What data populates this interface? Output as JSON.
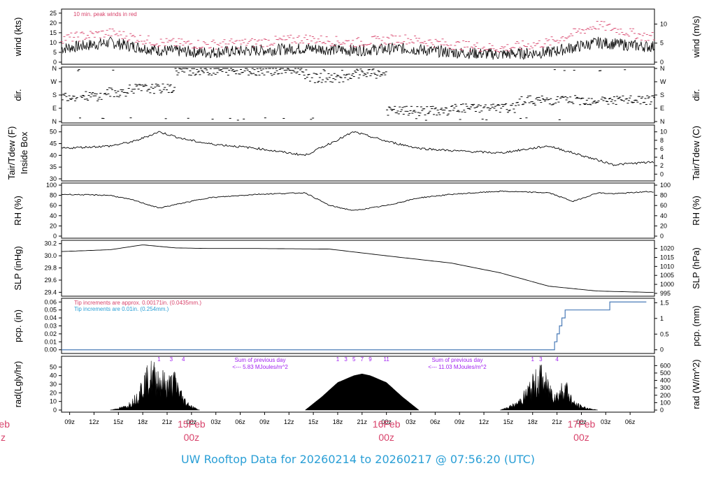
{
  "title": "UW Rooftop Data for 20260214  to  20260217 @ 07:56:20  (UTC)",
  "colors": {
    "accent_red": "#d8436b",
    "accent_blue": "#2a9fd6",
    "purple": "#a020f0",
    "pcp_line": "#4a7bb7"
  },
  "chart_data": [
    {
      "type": "line",
      "panel": "wind",
      "ylabel_left": "wind (kts)",
      "ylabel_right": "wind (m/s)",
      "ylim": [
        0,
        26
      ],
      "yticks_left": [
        "0",
        "5",
        "10",
        "15",
        "20",
        "25"
      ],
      "yticks_right": [
        "0",
        "5",
        "10"
      ],
      "annotation": "10 min. peak winds in red",
      "series": [
        {
          "x": [
            0,
            6,
            12,
            18,
            24,
            30,
            36,
            42,
            48,
            54,
            60,
            66,
            72
          ],
          "values": [
            7,
            10,
            6,
            5,
            6,
            7,
            6,
            7,
            5,
            4,
            5,
            10,
            8
          ]
        },
        {
          "x": [
            0,
            6,
            12,
            18,
            24,
            30,
            36,
            42,
            48,
            54,
            60,
            66,
            72
          ],
          "values": [
            12,
            15,
            10,
            9,
            10,
            12,
            10,
            12,
            9,
            7,
            10,
            19,
            13
          ]
        }
      ]
    },
    {
      "type": "scatter",
      "panel": "dir",
      "ylabel_left": "dir.",
      "ylabel_right": "dir.",
      "yticks_left": [
        "N",
        "E",
        "S",
        "W",
        "N"
      ],
      "yticks_right": [
        "N",
        "E",
        "S",
        "W",
        "N"
      ]
    },
    {
      "type": "line",
      "panel": "temp",
      "ylabel_left": "Tair/Tdew (F)\nInside Box",
      "ylabel_right": "Tair/Tdew (C)",
      "ylim": [
        30,
        52
      ],
      "yticks_left": [
        "30",
        "35",
        "40",
        "45",
        "50"
      ],
      "yticks_right": [
        "0",
        "2",
        "4",
        "6",
        "8",
        "10"
      ],
      "series": [
        {
          "x": [
            0,
            6,
            9,
            12,
            15,
            18,
            24,
            30,
            33,
            36,
            40,
            44,
            48,
            54,
            60,
            63,
            66,
            68,
            72
          ],
          "values": [
            43,
            44,
            46,
            50,
            47,
            45,
            43,
            40,
            45,
            50,
            46,
            43,
            42,
            41,
            44,
            41,
            38,
            36,
            37
          ]
        }
      ]
    },
    {
      "type": "line",
      "panel": "rh",
      "ylabel_left": "RH (%)",
      "ylabel_right": "RH (%)",
      "ylim": [
        0,
        100
      ],
      "yticks_left": [
        "0",
        "20",
        "40",
        "60",
        "80",
        "100"
      ],
      "yticks_right": [
        "0",
        "20",
        "40",
        "60",
        "80",
        "100"
      ],
      "series": [
        {
          "x": [
            0,
            6,
            9,
            12,
            15,
            18,
            24,
            30,
            33,
            36,
            40,
            44,
            48,
            54,
            60,
            63,
            66,
            68,
            72
          ],
          "values": [
            82,
            80,
            70,
            55,
            65,
            75,
            82,
            85,
            60,
            50,
            60,
            75,
            82,
            88,
            85,
            68,
            85,
            83,
            87
          ]
        }
      ]
    },
    {
      "type": "line",
      "panel": "slp",
      "ylabel_left": "SLP (inHg)",
      "ylabel_right": "SLP (hPa)",
      "ylim": [
        29.37,
        30.22
      ],
      "yticks_left": [
        "29.4",
        "29.6",
        "29.8",
        "30.0",
        "30.2"
      ],
      "yticks_right": [
        "995",
        "1000",
        "1005",
        "1010",
        "1015",
        "1020"
      ],
      "series": [
        {
          "x": [
            0,
            6,
            10,
            14,
            18,
            24,
            33,
            40,
            48,
            54,
            60,
            66,
            72
          ],
          "values": [
            30.07,
            30.1,
            30.18,
            30.13,
            30.12,
            30.12,
            30.11,
            30.0,
            29.88,
            29.72,
            29.5,
            29.42,
            29.4
          ]
        }
      ]
    },
    {
      "type": "line",
      "panel": "pcp",
      "ylabel_left": "pcp. (in)",
      "ylabel_right": "pcp. (mm)",
      "ylim": [
        -0.002,
        0.062
      ],
      "yticks_left": [
        "0.00",
        "0.01",
        "0.02",
        "0.03",
        "0.04",
        "0.05",
        "0.06"
      ],
      "yticks_right": [
        "0",
        "0.5",
        "1",
        "1.5"
      ],
      "annotations": [
        "Tip increments are approx. 0.00171in. (0.0435mm.)",
        "Tip increments are 0.01in. (0.254mm.)"
      ],
      "series": [
        {
          "x": [
            0,
            60.5,
            60.7,
            61,
            61.3,
            61.6,
            62,
            67,
            67.5,
            72
          ],
          "values": [
            0,
            0,
            0.01,
            0.02,
            0.03,
            0.04,
            0.05,
            0.05,
            0.06,
            0.06
          ]
        }
      ]
    },
    {
      "type": "area",
      "panel": "rad",
      "ylabel_left": "rad(Lgly/hr)",
      "ylabel_right": "rad (W/m^2)",
      "ylim": [
        0,
        60
      ],
      "yticks_left": [
        "0",
        "10",
        "20",
        "30",
        "40",
        "50"
      ],
      "yticks_right": [
        "0",
        "100",
        "200",
        "300",
        "400",
        "500",
        "600"
      ],
      "annotations": [
        "Sum of previous day",
        "<--- 5.83 MJoules/m^2",
        "Sum of previous day",
        "<--- 11.03 MJoules/m^2"
      ],
      "sunhours": [
        [
          "1",
          "3",
          "4"
        ],
        [
          "1",
          "3",
          "5",
          "7",
          "9",
          "11"
        ],
        [
          "1",
          "3",
          "4"
        ]
      ],
      "series": [
        {
          "x": [
            6,
            8,
            9,
            10,
            11,
            12,
            13,
            14,
            15,
            16,
            17
          ],
          "values": [
            0,
            5,
            15,
            35,
            50,
            45,
            35,
            40,
            15,
            5,
            0
          ]
        },
        {
          "x": [
            30,
            32,
            34,
            36,
            37,
            38,
            40,
            42,
            44
          ],
          "values": [
            0,
            15,
            32,
            40,
            42,
            40,
            32,
            15,
            0
          ]
        },
        {
          "x": [
            54,
            56,
            57,
            58,
            59,
            60,
            61,
            62,
            63,
            64,
            65,
            66
          ],
          "values": [
            0,
            8,
            20,
            35,
            48,
            30,
            20,
            35,
            10,
            5,
            2,
            0
          ]
        }
      ]
    }
  ],
  "xaxis": {
    "ticks": [
      "09z",
      "12z",
      "15z",
      "18z",
      "21z",
      "00z",
      "03z",
      "06z",
      "09z",
      "12z",
      "15z",
      "18z",
      "21z",
      "00z",
      "03z",
      "06z",
      "09z",
      "12z",
      "15z",
      "18z",
      "21z",
      "00z",
      "03z",
      "06z"
    ],
    "date_labels": [
      {
        "date": "15Feb",
        "time": "00z"
      },
      {
        "date": "16Feb",
        "time": "00z"
      },
      {
        "date": "17Feb",
        "time": "00z"
      }
    ],
    "partial_label": {
      "date": "eb",
      "time": "z"
    }
  }
}
